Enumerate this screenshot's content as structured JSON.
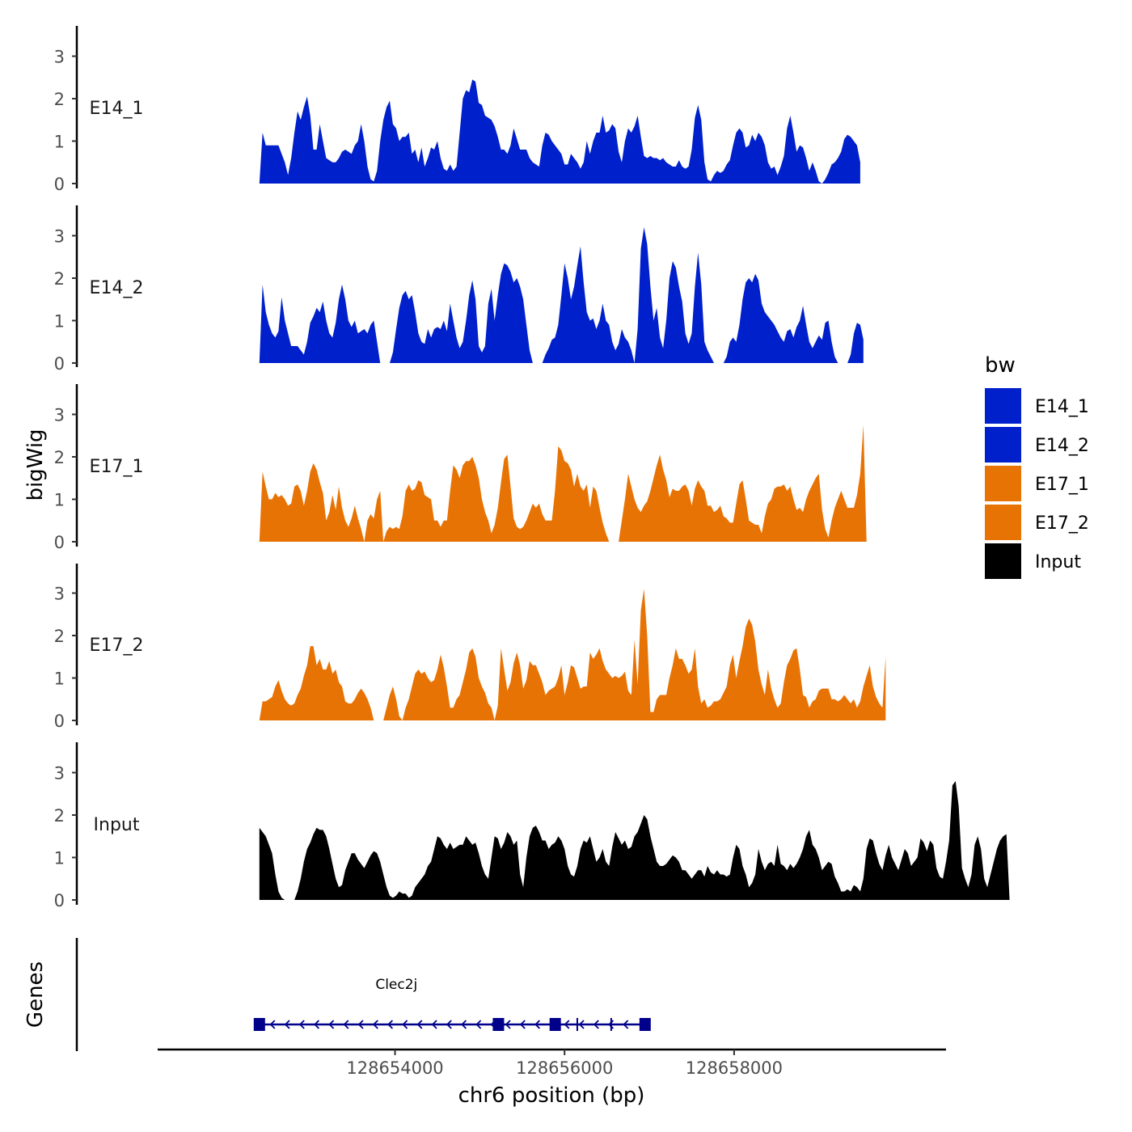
{
  "chart_data": {
    "type": "area",
    "ylabel": "bigWig",
    "xlabel": "chr6 position (bp)",
    "x_range": [
      128651200,
      128660500
    ],
    "ylim": [
      0,
      3.8
    ],
    "y_ticks": [
      "0",
      "1",
      "2",
      "3"
    ],
    "x_ticks": [
      {
        "value": 128654000,
        "label": "128654000"
      },
      {
        "value": 128656000,
        "label": "128656000"
      },
      {
        "value": 128658000,
        "label": "128658000"
      }
    ],
    "legend": {
      "title": "bw",
      "position": "right",
      "entries": [
        {
          "name": "E14_1",
          "color": "#0020CC"
        },
        {
          "name": "E14_2",
          "color": "#0020CC"
        },
        {
          "name": "E17_1",
          "color": "#E87305"
        },
        {
          "name": "E17_2",
          "color": "#E87305"
        },
        {
          "name": "Input",
          "color": "#000000"
        }
      ]
    },
    "series": [
      {
        "name": "E14_1",
        "color": "#0020CC",
        "x_start": 128652400,
        "step": 37.5,
        "values": [
          0,
          1.2,
          0.9,
          0.9,
          0.9,
          0.9,
          0.9,
          0.7,
          0.5,
          0.2,
          0.6,
          1.2,
          1.7,
          1.5,
          1.8,
          2.05,
          1.6,
          0.8,
          0.8,
          1.4,
          1.0,
          0.6,
          0.55,
          0.5,
          0.5,
          0.6,
          0.75,
          0.8,
          0.75,
          0.7,
          0.9,
          1.0,
          1.4,
          1.0,
          0.4,
          0.1,
          0.05,
          0.3,
          1.0,
          1.5,
          1.8,
          1.95,
          1.4,
          1.3,
          1.0,
          1.1,
          1.1,
          1.2,
          0.7,
          0.8,
          0.5,
          0.85,
          0.4,
          0.6,
          0.85,
          0.8,
          1.0,
          0.6,
          0.35,
          0.3,
          0.45,
          0.3,
          0.4,
          1.2,
          2.0,
          2.2,
          2.15,
          2.45,
          2.4,
          1.9,
          1.85,
          1.6,
          1.55,
          1.5,
          1.35,
          1.1,
          0.8,
          0.8,
          0.7,
          0.9,
          1.3,
          1.05,
          0.8,
          0.8,
          0.8,
          0.6,
          0.5,
          0.45,
          0.4,
          0.9,
          1.2,
          1.15,
          1.0,
          0.9,
          0.8,
          0.7,
          0.45,
          0.45,
          0.7,
          0.6,
          0.5,
          0.35,
          0.5,
          1.0,
          0.7,
          1.0,
          1.2,
          1.2,
          1.6,
          1.2,
          1.25,
          1.4,
          1.3,
          0.75,
          0.5,
          1.0,
          1.3,
          1.2,
          1.35,
          1.6,
          1.1,
          0.65,
          0.6,
          0.65,
          0.6,
          0.6,
          0.55,
          0.6,
          0.5,
          0.45,
          0.4,
          0.4,
          0.55,
          0.4,
          0.35,
          0.4,
          0.8,
          1.55,
          1.85,
          1.5,
          0.5,
          0.1,
          0.05,
          0.2,
          0.3,
          0.25,
          0.3,
          0.45,
          0.55,
          0.9,
          1.2,
          1.3,
          1.2,
          0.85,
          0.9,
          1.15,
          1.0,
          1.2,
          1.1,
          0.9,
          0.5,
          0.35,
          0.4,
          0.2,
          0.4,
          0.65,
          1.3,
          1.6,
          1.2,
          0.75,
          0.9,
          0.85,
          0.6,
          0.3,
          0.5,
          0.3,
          0.05,
          0.0,
          0.1,
          0.25,
          0.45,
          0.5,
          0.6,
          0.75,
          1.05,
          1.15,
          1.1,
          1.0,
          0.9,
          0.5
        ]
      },
      {
        "name": "E14_2",
        "color": "#0020CC",
        "x_start": 128652400,
        "step": 37.5,
        "values": [
          0,
          1.85,
          1.2,
          0.9,
          0.7,
          0.6,
          0.75,
          1.55,
          1.0,
          0.7,
          0.4,
          0.4,
          0.4,
          0.3,
          0.2,
          0.5,
          0.95,
          1.1,
          1.3,
          1.2,
          1.45,
          1.0,
          0.7,
          0.6,
          0.95,
          1.5,
          1.85,
          1.5,
          1.0,
          0.85,
          1.0,
          0.7,
          0.75,
          0.8,
          0.7,
          0.9,
          1.0,
          0.5,
          0.0,
          null,
          null,
          0.0,
          0.25,
          0.8,
          1.3,
          1.6,
          1.7,
          1.5,
          1.6,
          1.2,
          0.7,
          0.5,
          0.45,
          0.8,
          0.6,
          0.8,
          0.85,
          0.8,
          1.0,
          0.75,
          1.4,
          1.0,
          0.6,
          0.35,
          0.5,
          1.0,
          1.6,
          1.95,
          1.5,
          0.4,
          0.25,
          0.4,
          1.4,
          1.75,
          1.0,
          1.6,
          2.1,
          2.35,
          2.3,
          2.15,
          1.9,
          2.0,
          1.8,
          1.5,
          0.9,
          0.3,
          0.0,
          null,
          null,
          0.0,
          0.2,
          0.35,
          0.55,
          0.6,
          0.9,
          1.6,
          2.35,
          2.0,
          1.5,
          1.8,
          2.3,
          2.75,
          1.9,
          1.2,
          1.0,
          1.05,
          0.8,
          1.0,
          1.4,
          1.0,
          0.9,
          0.5,
          0.3,
          0.45,
          0.8,
          0.6,
          0.5,
          0.3,
          0.0,
          0.8,
          2.7,
          3.2,
          2.8,
          1.8,
          1.0,
          1.3,
          0.6,
          0.35,
          1.0,
          2.0,
          2.4,
          2.25,
          1.8,
          1.45,
          0.7,
          0.45,
          0.7,
          1.8,
          2.6,
          1.85,
          0.5,
          0.3,
          0.15,
          0.0,
          null,
          null,
          0.0,
          0.15,
          0.5,
          0.6,
          0.5,
          0.9,
          1.5,
          1.9,
          2.0,
          1.9,
          2.1,
          1.95,
          1.4,
          1.2,
          1.1,
          1.0,
          0.9,
          0.75,
          0.6,
          0.5,
          0.75,
          0.8,
          0.6,
          0.85,
          1.0,
          1.35,
          0.9,
          0.5,
          0.35,
          0.5,
          0.65,
          0.55,
          0.95,
          1.0,
          0.5,
          0.15,
          0.0,
          null,
          null,
          0.0,
          0.2,
          0.7,
          0.95,
          0.9,
          0.55
        ]
      },
      {
        "name": "E17_1",
        "color": "#E87305",
        "x_start": 128652400,
        "step": 37.5,
        "values": [
          0,
          1.65,
          1.3,
          1.0,
          1.0,
          1.15,
          1.05,
          1.1,
          1.0,
          0.85,
          0.9,
          1.3,
          1.35,
          1.2,
          0.85,
          1.2,
          1.65,
          1.85,
          1.7,
          1.4,
          1.15,
          0.5,
          0.7,
          1.1,
          0.75,
          1.3,
          0.8,
          0.5,
          0.35,
          0.55,
          0.85,
          0.55,
          0.3,
          0.0,
          0.5,
          0.65,
          0.55,
          1.0,
          1.2,
          0.0,
          0.25,
          0.35,
          0.3,
          0.35,
          0.3,
          0.6,
          1.2,
          1.35,
          1.2,
          1.25,
          1.45,
          1.4,
          1.1,
          1.05,
          1.0,
          0.5,
          0.5,
          0.35,
          0.5,
          0.5,
          1.2,
          1.8,
          1.7,
          1.5,
          1.8,
          1.9,
          1.9,
          2.0,
          1.8,
          1.5,
          1.0,
          0.7,
          0.5,
          0.2,
          0.4,
          0.8,
          1.4,
          1.95,
          2.05,
          1.3,
          0.55,
          0.35,
          0.3,
          0.35,
          0.5,
          0.7,
          0.9,
          0.8,
          0.9,
          0.65,
          0.5,
          0.5,
          0.5,
          1.2,
          2.25,
          2.15,
          1.9,
          1.85,
          1.7,
          1.3,
          1.6,
          1.3,
          1.2,
          1.35,
          0.8,
          1.3,
          1.2,
          0.8,
          0.45,
          0.2,
          0.0,
          null,
          null,
          0.0,
          0.5,
          1.0,
          1.6,
          1.3,
          1.0,
          0.8,
          0.7,
          0.85,
          0.95,
          1.2,
          1.5,
          1.8,
          2.05,
          1.7,
          1.45,
          1.05,
          1.25,
          1.2,
          1.2,
          1.3,
          1.35,
          1.2,
          0.85,
          1.25,
          1.45,
          1.3,
          1.2,
          0.85,
          0.85,
          0.7,
          0.75,
          0.85,
          0.6,
          0.55,
          0.45,
          0.45,
          0.9,
          1.35,
          1.45,
          1.0,
          0.5,
          0.45,
          0.4,
          0.4,
          0.2,
          0.6,
          0.9,
          1.0,
          1.25,
          1.3,
          1.3,
          1.35,
          1.2,
          1.3,
          1.0,
          0.75,
          0.8,
          0.7,
          1.0,
          1.2,
          1.35,
          1.5,
          1.6,
          0.75,
          0.3,
          0.1,
          0.5,
          0.8,
          1.0,
          1.2,
          1.0,
          0.8,
          0.8,
          0.8,
          1.1,
          1.6,
          2.75,
          0
        ]
      },
      {
        "name": "E17_2",
        "color": "#E87305",
        "x_start": 128652400,
        "step": 37.5,
        "values": [
          0,
          0.45,
          0.45,
          0.5,
          0.55,
          0.8,
          0.95,
          0.7,
          0.5,
          0.4,
          0.35,
          0.4,
          0.6,
          0.75,
          1.05,
          1.3,
          1.75,
          1.75,
          1.3,
          1.45,
          1.2,
          1.2,
          1.4,
          1.1,
          1.2,
          0.9,
          0.8,
          0.45,
          0.4,
          0.4,
          0.5,
          0.65,
          0.75,
          0.65,
          0.5,
          0.3,
          0.0,
          null,
          null,
          0.0,
          0.3,
          0.6,
          0.8,
          0.5,
          0.1,
          0.0,
          0.3,
          0.5,
          0.8,
          1.1,
          1.2,
          1.1,
          1.15,
          1.0,
          0.9,
          0.95,
          1.2,
          1.55,
          1.25,
          0.8,
          0.3,
          0.3,
          0.5,
          0.6,
          0.9,
          1.2,
          1.6,
          1.7,
          1.5,
          1.0,
          0.8,
          0.65,
          0.4,
          0.3,
          0.0,
          0.35,
          1.7,
          1.2,
          0.7,
          0.9,
          1.35,
          1.6,
          1.3,
          0.75,
          0.95,
          1.4,
          1.3,
          1.3,
          1.1,
          0.9,
          0.6,
          0.7,
          0.75,
          0.8,
          1.0,
          1.3,
          0.6,
          0.9,
          1.3,
          1.25,
          1.0,
          0.75,
          0.8,
          0.8,
          1.6,
          1.45,
          1.55,
          1.7,
          1.4,
          1.2,
          1.1,
          1.0,
          1.05,
          1.0,
          1.05,
          1.15,
          0.7,
          0.6,
          1.9,
          0.85,
          2.6,
          3.1,
          2.0,
          0.2,
          0.2,
          0.5,
          0.6,
          0.6,
          0.6,
          1.0,
          1.3,
          1.7,
          1.45,
          1.45,
          1.3,
          1.1,
          1.2,
          1.7,
          0.8,
          0.4,
          0.5,
          0.3,
          0.35,
          0.45,
          0.45,
          0.5,
          0.65,
          0.8,
          1.3,
          1.55,
          1.0,
          1.4,
          1.75,
          2.2,
          2.4,
          2.25,
          1.85,
          1.2,
          0.85,
          0.6,
          1.2,
          0.75,
          0.5,
          0.3,
          0.4,
          0.9,
          1.3,
          1.45,
          1.65,
          1.7,
          1.2,
          0.6,
          0.55,
          0.3,
          0.45,
          0.5,
          0.7,
          0.75,
          0.75,
          0.75,
          0.5,
          0.5,
          0.45,
          0.5,
          0.6,
          0.5,
          0.4,
          0.5,
          0.3,
          0.45,
          0.8,
          1.05,
          1.3,
          0.8,
          0.55,
          0.4,
          0.3,
          1.5
        ]
      },
      {
        "name": "Input",
        "color": "#000000",
        "x_start": 128652400,
        "step": 37.5,
        "values": [
          1.7,
          1.6,
          1.5,
          1.3,
          1.1,
          0.6,
          0.2,
          0.05,
          0.0,
          null,
          null,
          0.0,
          0.2,
          0.5,
          0.9,
          1.2,
          1.35,
          1.55,
          1.7,
          1.65,
          1.65,
          1.5,
          1.2,
          0.85,
          0.5,
          0.3,
          0.35,
          0.7,
          0.9,
          1.1,
          1.1,
          0.95,
          0.85,
          0.75,
          0.9,
          1.05,
          1.15,
          1.1,
          0.9,
          0.6,
          0.3,
          0.1,
          0.05,
          0.1,
          0.2,
          0.15,
          0.15,
          0.05,
          0.1,
          0.3,
          0.4,
          0.5,
          0.6,
          0.8,
          0.9,
          1.2,
          1.5,
          1.45,
          1.3,
          1.2,
          1.35,
          1.2,
          1.25,
          1.3,
          1.3,
          1.5,
          1.4,
          1.3,
          1.35,
          1.1,
          0.8,
          0.6,
          0.5,
          1.0,
          1.5,
          1.45,
          1.2,
          1.35,
          1.6,
          1.5,
          1.3,
          1.4,
          0.6,
          0.3,
          1.0,
          1.5,
          1.7,
          1.75,
          1.6,
          1.4,
          1.4,
          1.2,
          1.3,
          1.35,
          1.5,
          1.4,
          1.2,
          0.8,
          0.6,
          0.55,
          0.8,
          1.2,
          1.4,
          1.35,
          1.5,
          1.2,
          0.9,
          1.0,
          1.2,
          0.9,
          0.8,
          1.25,
          1.6,
          1.45,
          1.3,
          1.4,
          1.2,
          1.25,
          1.5,
          1.6,
          1.8,
          2.0,
          1.9,
          1.5,
          1.2,
          0.9,
          0.8,
          0.8,
          0.85,
          0.95,
          1.05,
          1.0,
          0.9,
          0.7,
          0.7,
          0.6,
          0.5,
          0.6,
          0.7,
          0.7,
          0.55,
          0.8,
          0.65,
          0.6,
          0.7,
          0.6,
          0.6,
          0.55,
          0.6,
          1.0,
          1.3,
          1.2,
          0.8,
          0.6,
          0.3,
          0.4,
          0.6,
          1.2,
          0.9,
          0.7,
          0.85,
          0.9,
          0.8,
          1.3,
          0.85,
          0.8,
          0.7,
          0.85,
          0.75,
          0.85,
          1.0,
          1.2,
          1.5,
          1.65,
          1.3,
          1.2,
          1.0,
          0.7,
          0.8,
          0.9,
          0.85,
          0.55,
          0.4,
          0.2,
          0.2,
          0.25,
          0.2,
          0.35,
          0.3,
          0.2,
          0.5,
          1.2,
          1.45,
          1.4,
          1.1,
          0.85,
          0.7,
          1.05,
          1.3,
          1.0,
          0.85,
          0.7,
          0.95,
          1.2,
          1.1,
          0.8,
          0.9,
          1.0,
          1.45,
          1.35,
          1.15,
          1.4,
          1.3,
          0.75,
          0.55,
          0.5,
          0.9,
          1.4,
          2.7,
          2.8,
          2.2,
          0.75,
          0.5,
          0.3,
          0.6,
          1.3,
          1.5,
          1.2,
          0.5,
          0.3,
          0.6,
          0.9,
          1.2,
          1.4,
          1.5,
          1.55,
          0
        ]
      }
    ],
    "genes": {
      "label": "Genes",
      "items": [
        {
          "name": "Clec2j",
          "start": 128652400,
          "end": 128656950,
          "strand": "-",
          "color": "#00008B",
          "exons": [
            128652400,
            128655220,
            128655890,
            128656950
          ],
          "introns_marks": [
            128656150,
            128656550
          ]
        }
      ]
    }
  }
}
